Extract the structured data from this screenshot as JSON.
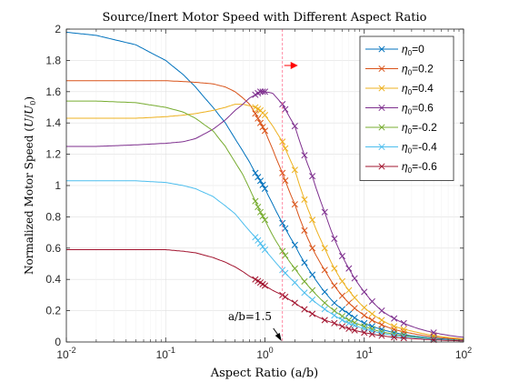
{
  "chart_data": {
    "type": "line",
    "title": "Source/Inert Motor Speed with Different Aspect Ratio",
    "xlabel": "Aspect Ratio (a/b)",
    "ylabel_parts": [
      "Normalized Motor Speed (",
      "U",
      "/",
      "U",
      "0",
      ")"
    ],
    "xscale": "log",
    "xlim": [
      0.01,
      100
    ],
    "ylim": [
      0,
      2
    ],
    "x_ticks": [
      0.01,
      0.1,
      1,
      10,
      100
    ],
    "x_tick_labels": [
      {
        "base": "10",
        "exp": "-2"
      },
      {
        "base": "10",
        "exp": "-1"
      },
      {
        "base": "10",
        "exp": "0"
      },
      {
        "base": "10",
        "exp": "1"
      },
      {
        "base": "10",
        "exp": "2"
      }
    ],
    "y_ticks": [
      0,
      0.2,
      0.4,
      0.6,
      0.8,
      1,
      1.2,
      1.4,
      1.6,
      1.8,
      2
    ],
    "y_tick_labels": [
      "0",
      "0.2",
      "0.4",
      "0.6",
      "0.8",
      "1",
      "1.2",
      "1.4",
      "1.6",
      "1.8",
      "2"
    ],
    "grid": true,
    "legend": {
      "position": "top-right",
      "symbol": "η",
      "sub": "0"
    },
    "x_points": [
      0.01,
      0.02,
      0.05,
      0.1,
      0.15,
      0.2,
      0.3,
      0.4,
      0.5,
      0.6,
      0.7,
      0.8,
      0.9,
      1,
      1.2,
      1.5,
      2,
      3,
      4,
      5,
      7,
      10,
      15,
      20,
      30,
      50,
      100
    ],
    "marker_x": [
      0.8,
      0.85,
      0.9,
      0.95,
      1,
      1.5,
      1.6,
      2,
      2.5,
      3,
      4,
      5,
      6,
      7,
      8,
      10,
      12,
      15,
      20,
      25,
      50
    ],
    "series": [
      {
        "name": "=0",
        "color": "#0072BD",
        "values": [
          1.98,
          1.96,
          1.9,
          1.8,
          1.71,
          1.63,
          1.5,
          1.4,
          1.3,
          1.22,
          1.15,
          1.08,
          1.03,
          0.98,
          0.88,
          0.76,
          0.62,
          0.43,
          0.32,
          0.25,
          0.18,
          0.12,
          0.08,
          0.06,
          0.04,
          0.025,
          0.012
        ]
      },
      {
        "name": "=0.2",
        "color": "#D95319",
        "values": [
          1.67,
          1.67,
          1.67,
          1.67,
          1.665,
          1.66,
          1.65,
          1.63,
          1.6,
          1.56,
          1.52,
          1.46,
          1.4,
          1.35,
          1.23,
          1.08,
          0.88,
          0.6,
          0.46,
          0.36,
          0.25,
          0.17,
          0.11,
          0.08,
          0.055,
          0.033,
          0.016
        ]
      },
      {
        "name": "=0.4",
        "color": "#EDB120",
        "values": [
          1.43,
          1.43,
          1.43,
          1.44,
          1.45,
          1.46,
          1.48,
          1.5,
          1.52,
          1.52,
          1.51,
          1.5,
          1.48,
          1.45,
          1.38,
          1.28,
          1.1,
          0.78,
          0.6,
          0.47,
          0.33,
          0.22,
          0.14,
          0.1,
          0.07,
          0.042,
          0.02
        ]
      },
      {
        "name": "=0.6",
        "color": "#7E2F8E",
        "values": [
          1.25,
          1.25,
          1.26,
          1.27,
          1.28,
          1.3,
          1.36,
          1.42,
          1.48,
          1.52,
          1.56,
          1.58,
          1.6,
          1.6,
          1.59,
          1.52,
          1.38,
          1.06,
          0.83,
          0.66,
          0.47,
          0.32,
          0.2,
          0.15,
          0.1,
          0.06,
          0.03
        ]
      },
      {
        "name": "=-0.2",
        "color": "#77AC30",
        "values": [
          1.54,
          1.54,
          1.53,
          1.5,
          1.47,
          1.43,
          1.35,
          1.25,
          1.15,
          1.07,
          0.98,
          0.9,
          0.83,
          0.78,
          0.68,
          0.58,
          0.47,
          0.33,
          0.25,
          0.2,
          0.14,
          0.1,
          0.065,
          0.05,
          0.035,
          0.02,
          0.01
        ]
      },
      {
        "name": "=-0.4",
        "color": "#4DBEEE",
        "values": [
          1.03,
          1.03,
          1.03,
          1.02,
          1.0,
          0.98,
          0.93,
          0.87,
          0.82,
          0.76,
          0.71,
          0.67,
          0.63,
          0.59,
          0.53,
          0.46,
          0.38,
          0.27,
          0.21,
          0.17,
          0.12,
          0.085,
          0.055,
          0.042,
          0.03,
          0.018,
          0.009
        ]
      },
      {
        "name": "=-0.6",
        "color": "#A2142F",
        "values": [
          0.59,
          0.59,
          0.59,
          0.59,
          0.58,
          0.57,
          0.54,
          0.51,
          0.48,
          0.45,
          0.42,
          0.4,
          0.38,
          0.36,
          0.33,
          0.3,
          0.25,
          0.18,
          0.14,
          0.12,
          0.085,
          0.06,
          0.04,
          0.03,
          0.022,
          0.014,
          0.007
        ]
      }
    ],
    "reference_line": {
      "x": 1.5
    },
    "annotation": {
      "text": "a/b=1.5",
      "x": 1.5,
      "y": 0
    }
  }
}
